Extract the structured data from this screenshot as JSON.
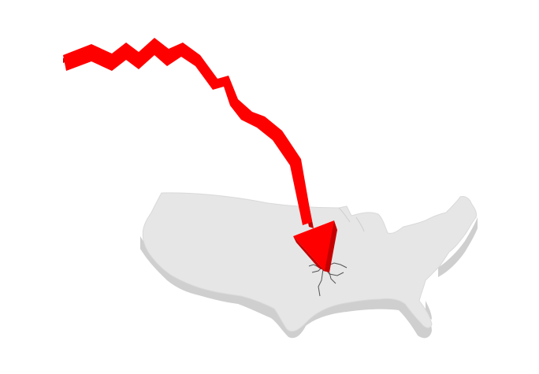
{
  "illustration": {
    "subject": "usa-map-with-falling-arrow",
    "colors": {
      "background": "#ffffff",
      "map_top": "#e6e6e6",
      "map_side": "#cfcfcf",
      "map_edge": "#d9d9d9",
      "arrow_front": "#ff0000",
      "arrow_side": "#c40000",
      "crack": "#555555"
    }
  }
}
